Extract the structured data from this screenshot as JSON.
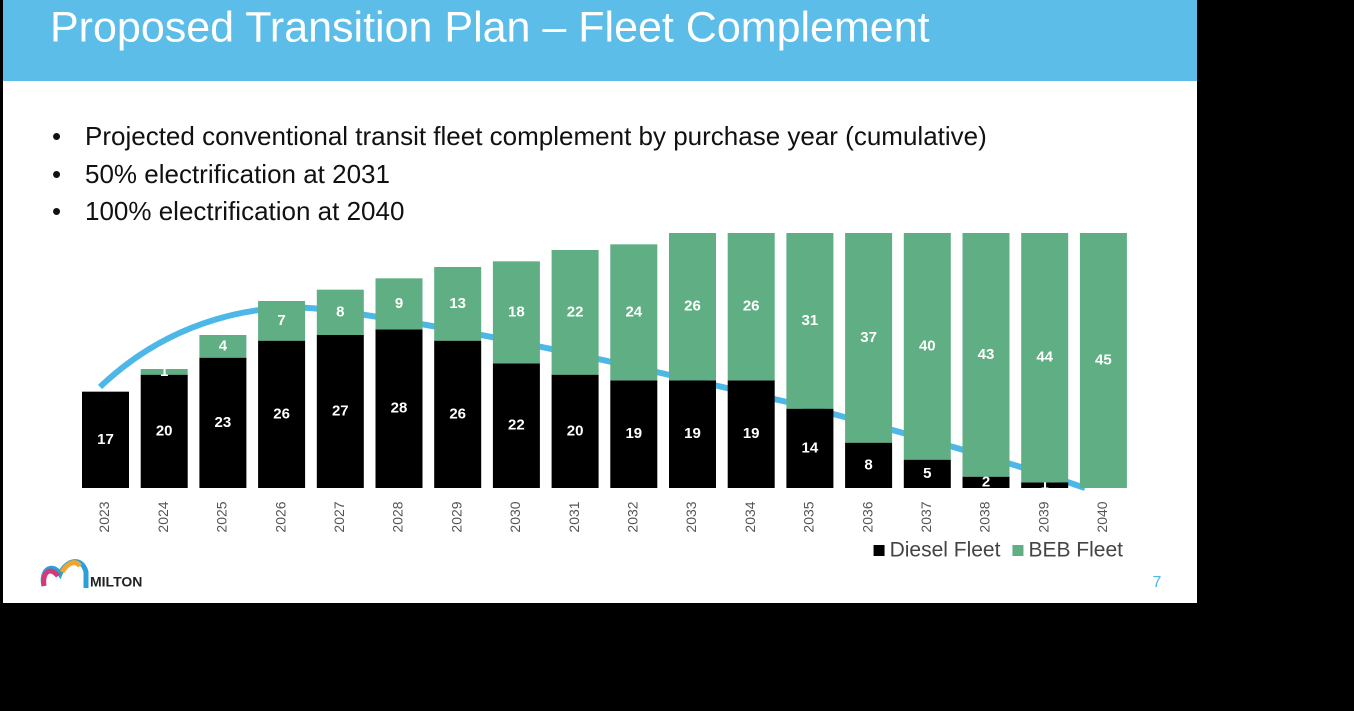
{
  "header": {
    "title": "Proposed Transition Plan – Fleet Complement"
  },
  "bullets": [
    "Projected conventional transit fleet complement by purchase year (cumulative)",
    "50% electrification at 2031",
    "100% electrification at 2040"
  ],
  "chart_data": {
    "type": "stacked-bar",
    "categories": [
      "2023",
      "2024",
      "2025",
      "2026",
      "2027",
      "2028",
      "2029",
      "2030",
      "2031",
      "2032",
      "2033",
      "2034",
      "2035",
      "2036",
      "2037",
      "2038",
      "2039",
      "2040"
    ],
    "series": [
      {
        "name": "Diesel Fleet",
        "color": "#000000",
        "values": [
          17,
          20,
          23,
          26,
          27,
          28,
          26,
          22,
          20,
          19,
          19,
          19,
          14,
          8,
          5,
          2,
          1,
          0
        ]
      },
      {
        "name": "BEB Fleet",
        "color": "#5fae84",
        "values": [
          0,
          1,
          4,
          7,
          8,
          9,
          13,
          18,
          22,
          24,
          26,
          26,
          31,
          37,
          40,
          43,
          44,
          45
        ]
      }
    ],
    "legend": "bottom-right"
  },
  "logo": {
    "text": "MILTON"
  },
  "page_number": "7"
}
